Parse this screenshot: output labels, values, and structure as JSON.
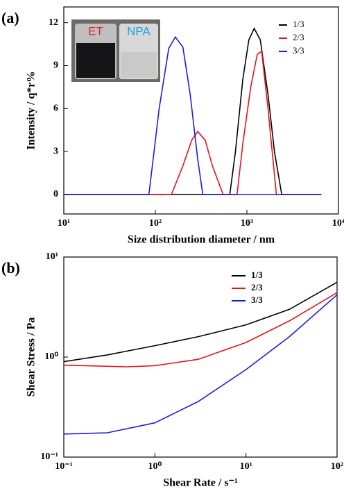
{
  "chart_data": [
    {
      "type": "line",
      "panel_label": "(a)",
      "xlabel": "Size distribution diameter / nm",
      "ylabel": "Intensity / q*r%",
      "xscale": "log",
      "xlim": [
        10,
        10000
      ],
      "ylim": [
        -1.36,
        13.1
      ],
      "xticks": [
        {
          "value": 10,
          "label": "10¹"
        },
        {
          "value": 100,
          "label": "10²"
        },
        {
          "value": 1000,
          "label": "10³"
        },
        {
          "value": 10000,
          "label": "10⁴"
        }
      ],
      "yticks": [
        0,
        3,
        6,
        9,
        12
      ],
      "inset_labels": [
        "ET",
        "NPA"
      ],
      "series": [
        {
          "name": "1/3",
          "color": "#000000",
          "x": [
            10,
            650,
            750,
            900,
            1050,
            1200,
            1400,
            1700,
            2000,
            2400,
            6500
          ],
          "values": [
            0,
            0,
            3,
            8,
            10.8,
            11.6,
            10.8,
            7,
            3,
            0,
            0
          ]
        },
        {
          "name": "2/3",
          "color": "#e8111a",
          "x": [
            10,
            150,
            200,
            250,
            290,
            350,
            420,
            550,
            780,
            900,
            1100,
            1300,
            1450,
            1700,
            2100,
            6500
          ],
          "values": [
            0,
            0,
            2,
            3.8,
            4.4,
            3.8,
            2,
            0,
            0,
            3.5,
            7.5,
            9.8,
            10,
            6,
            0,
            0
          ]
        },
        {
          "name": "3/3",
          "color": "#1a1ae8",
          "x": [
            10,
            85,
            110,
            140,
            165,
            200,
            240,
            290,
            330,
            6500
          ],
          "values": [
            0,
            0,
            6,
            10.2,
            11,
            10.3,
            7,
            2.5,
            0,
            0
          ]
        }
      ]
    },
    {
      "type": "line",
      "panel_label": "(b)",
      "xlabel": "Shear Rate / s⁻¹",
      "ylabel": "Shear Stress / Pa",
      "xscale": "log",
      "yscale": "log",
      "xlim": [
        0.1,
        100
      ],
      "ylim": [
        0.1,
        10
      ],
      "xticks": [
        {
          "value": 0.1,
          "label": "10⁻¹"
        },
        {
          "value": 1,
          "label": "10⁰"
        },
        {
          "value": 10,
          "label": "10¹"
        },
        {
          "value": 100,
          "label": "10²"
        }
      ],
      "yticks": [
        {
          "value": 0.1,
          "label": "10⁻¹"
        },
        {
          "value": 1,
          "label": "10⁰"
        },
        {
          "value": 10,
          "label": "10¹"
        }
      ],
      "series": [
        {
          "name": "1/3",
          "color": "#000000",
          "x": [
            0.1,
            0.3,
            1,
            3,
            10,
            30,
            100
          ],
          "values": [
            0.9,
            1.05,
            1.3,
            1.6,
            2.1,
            3.0,
            5.6
          ]
        },
        {
          "name": "2/3",
          "color": "#e8111a",
          "x": [
            0.1,
            0.5,
            1,
            3,
            10,
            30,
            100
          ],
          "values": [
            0.83,
            0.8,
            0.82,
            0.95,
            1.4,
            2.3,
            4.4
          ]
        },
        {
          "name": "3/3",
          "color": "#1a1ae8",
          "x": [
            0.1,
            0.3,
            1,
            3,
            10,
            30,
            100
          ],
          "values": [
            0.17,
            0.175,
            0.22,
            0.36,
            0.75,
            1.6,
            4.2
          ]
        }
      ]
    }
  ]
}
